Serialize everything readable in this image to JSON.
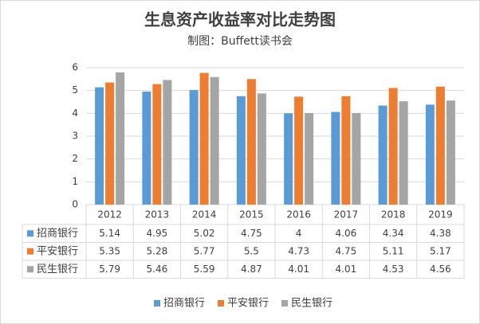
{
  "chart_data": {
    "type": "bar",
    "title": "生息资产收益率对比走势图",
    "subtitle": "制图：Buffett读书会",
    "categories": [
      "2012",
      "2013",
      "2014",
      "2015",
      "2016",
      "2017",
      "2018",
      "2019"
    ],
    "series": [
      {
        "name": "招商银行",
        "color": "#5b9bd5",
        "values": [
          5.14,
          4.95,
          5.02,
          4.75,
          4,
          4.06,
          4.34,
          4.38
        ]
      },
      {
        "name": "平安银行",
        "color": "#ed7d31",
        "values": [
          5.35,
          5.28,
          5.77,
          5.5,
          4.73,
          4.75,
          5.11,
          5.17
        ]
      },
      {
        "name": "民生银行",
        "color": "#a5a5a5",
        "values": [
          5.79,
          5.46,
          5.59,
          4.87,
          4.01,
          4.01,
          4.53,
          4.56
        ]
      }
    ],
    "ylim": [
      0,
      6
    ],
    "yticks": [
      0,
      1,
      2,
      3,
      4,
      5,
      6
    ],
    "grid": true
  }
}
